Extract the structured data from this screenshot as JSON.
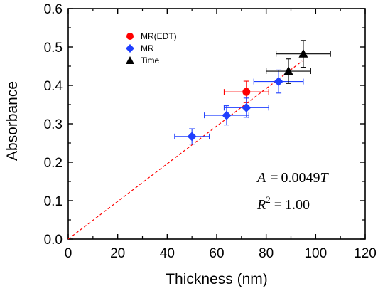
{
  "chart_data": {
    "type": "scatter",
    "xlabel": "Thickness (nm)",
    "ylabel": "Absorbance",
    "xlim": [
      0,
      120
    ],
    "ylim": [
      0.0,
      0.6
    ],
    "xticks": [
      0,
      20,
      40,
      60,
      80,
      100,
      120
    ],
    "yticks": [
      0.0,
      0.1,
      0.2,
      0.3,
      0.4,
      0.5,
      0.6
    ],
    "ytick_labels": [
      "0.0",
      "0.1",
      "0.2",
      "0.3",
      "0.4",
      "0.5",
      "0.6"
    ],
    "legend_position": "top-left",
    "grid": false,
    "series": [
      {
        "name": "MR(EDT)",
        "marker": "circle",
        "color": "#ff0000",
        "points": [
          {
            "x": 72,
            "y": 0.383,
            "xerr": 9,
            "yerr": 0.028
          }
        ]
      },
      {
        "name": "MR",
        "marker": "diamond",
        "color": "#1f3fff",
        "points": [
          {
            "x": 50,
            "y": 0.267,
            "xerr": 7,
            "yerr": 0.02
          },
          {
            "x": 64,
            "y": 0.322,
            "xerr": 9,
            "yerr": 0.025
          },
          {
            "x": 72,
            "y": 0.342,
            "xerr": 9,
            "yerr": 0.025
          },
          {
            "x": 85,
            "y": 0.41,
            "xerr": 10,
            "yerr": 0.03
          }
        ]
      },
      {
        "name": "Time",
        "marker": "triangle",
        "color": "#000000",
        "points": [
          {
            "x": 89,
            "y": 0.437,
            "xerr": 9,
            "yerr": 0.032
          },
          {
            "x": 95,
            "y": 0.482,
            "xerr": 11,
            "yerr": 0.035
          }
        ]
      }
    ],
    "fit_line": {
      "style": "dashed",
      "color": "#ff0000",
      "slope": 0.0049,
      "x_range": [
        0,
        94.5
      ]
    },
    "annotations": [
      {
        "id": "eq",
        "text": "A = 0.0049T"
      },
      {
        "id": "r2",
        "text": "R² = 1.00"
      }
    ]
  }
}
